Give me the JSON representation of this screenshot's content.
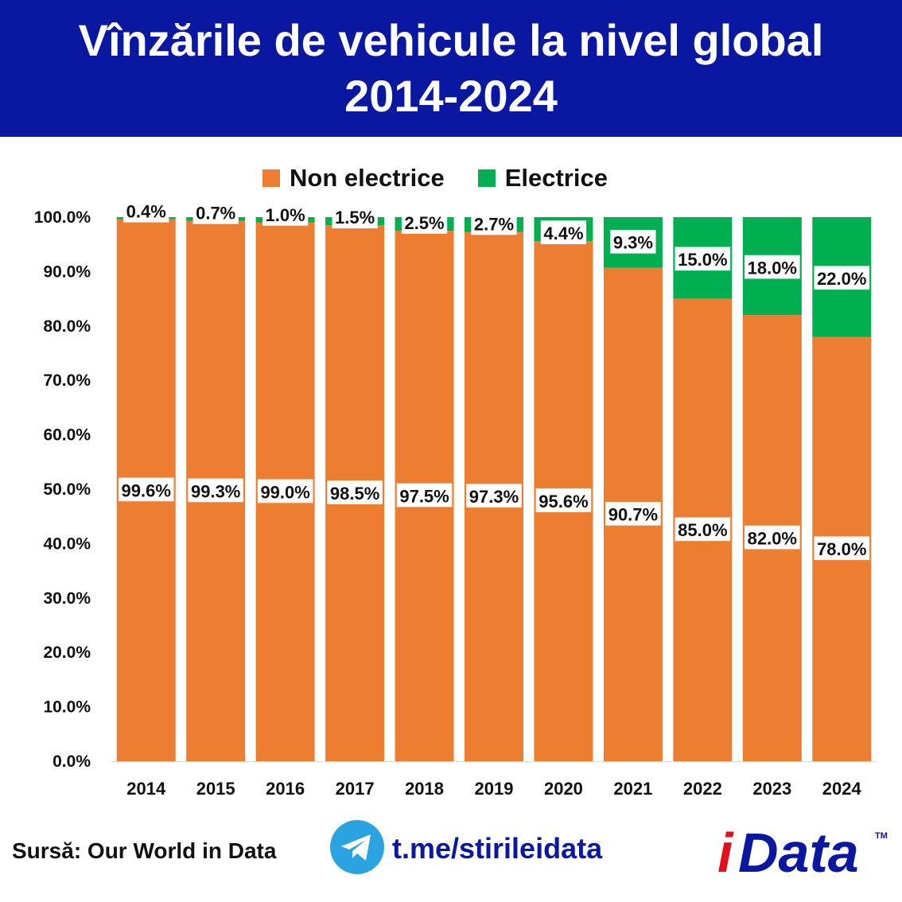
{
  "header": {
    "title_line1": "Vînzările de vehicule la nivel global",
    "title_line2": "2014-2024"
  },
  "colors": {
    "header_bg": "#0A17A0",
    "non_electric": "#ED7D31",
    "electric": "#00B050"
  },
  "chart_data": {
    "type": "bar",
    "stacked": true,
    "categories": [
      "2014",
      "2015",
      "2016",
      "2017",
      "2018",
      "2019",
      "2020",
      "2021",
      "2022",
      "2023",
      "2024"
    ],
    "series": [
      {
        "name": "Non electrice",
        "values": [
          99.6,
          99.3,
          99.0,
          98.5,
          97.5,
          97.3,
          95.6,
          90.7,
          85.0,
          82.0,
          78.0
        ],
        "labels": [
          "99.6%",
          "99.3%",
          "99.0%",
          "98.5%",
          "97.5%",
          "97.3%",
          "95.6%",
          "90.7%",
          "85.0%",
          "82.0%",
          "78.0%"
        ]
      },
      {
        "name": "Electrice",
        "values": [
          0.4,
          0.7,
          1.0,
          1.5,
          2.5,
          2.7,
          4.4,
          9.3,
          15.0,
          18.0,
          22.0
        ],
        "labels": [
          "0.4%",
          "0.7%",
          "1.0%",
          "1.5%",
          "2.5%",
          "2.7%",
          "4.4%",
          "9.3%",
          "15.0%",
          "18.0%",
          "22.0%"
        ]
      }
    ],
    "yticks": [
      "0.0%",
      "10.0%",
      "20.0%",
      "30.0%",
      "40.0%",
      "50.0%",
      "60.0%",
      "70.0%",
      "80.0%",
      "90.0%",
      "100.0%"
    ],
    "ylim": [
      0,
      100
    ],
    "legend_position": "top-center",
    "grid": false
  },
  "footer": {
    "source": "Sursă: Our World in Data",
    "link": "t.me/stirileidata",
    "logo_text": "iData",
    "logo_tm": "TM",
    "telegram_icon": "telegram-icon"
  }
}
